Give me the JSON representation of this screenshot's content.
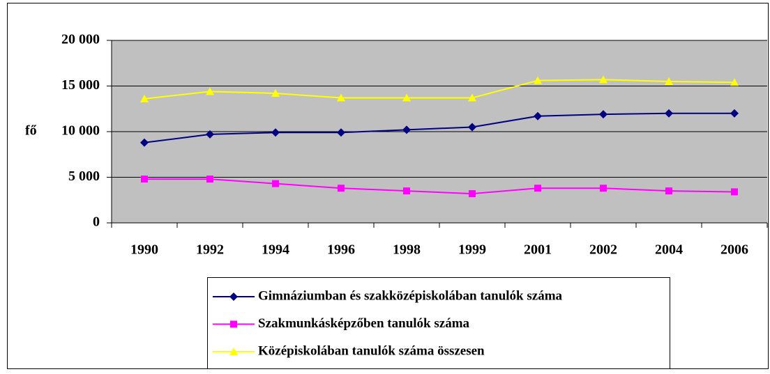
{
  "chart_data": {
    "type": "line",
    "y_label": "fő",
    "categories": [
      "1990",
      "1992",
      "1994",
      "1996",
      "1998",
      "1999",
      "2001",
      "2002",
      "2004",
      "2006"
    ],
    "series": [
      {
        "name": "Gimnáziumban és szakközépiskolában tanulók száma",
        "color": "#000080",
        "marker": "diamond",
        "values": [
          8800,
          9700,
          9900,
          9900,
          10200,
          10500,
          11700,
          11900,
          12000,
          12000
        ]
      },
      {
        "name": "Szakmunkásképzőben tanulók száma",
        "color": "#ff00ff",
        "marker": "square",
        "values": [
          4800,
          4800,
          4300,
          3800,
          3500,
          3200,
          3800,
          3800,
          3500,
          3400
        ]
      },
      {
        "name": "Középiskolában tanulók száma összesen",
        "color": "#ffff00",
        "marker": "triangle",
        "values": [
          13600,
          14400,
          14200,
          13700,
          13700,
          13700,
          15600,
          15700,
          15500,
          15400
        ]
      }
    ],
    "ylim": [
      0,
      20000
    ],
    "yticks": [
      0,
      {
        "value": 5000,
        "label": "5 000"
      },
      {
        "value": 10000,
        "label": "10 000"
      },
      {
        "value": 15000,
        "label": "15 000"
      },
      {
        "value": 20000,
        "label": "20 000"
      }
    ],
    "grid": true,
    "plot_background": "#c0c0c0",
    "legend": "bottom"
  }
}
